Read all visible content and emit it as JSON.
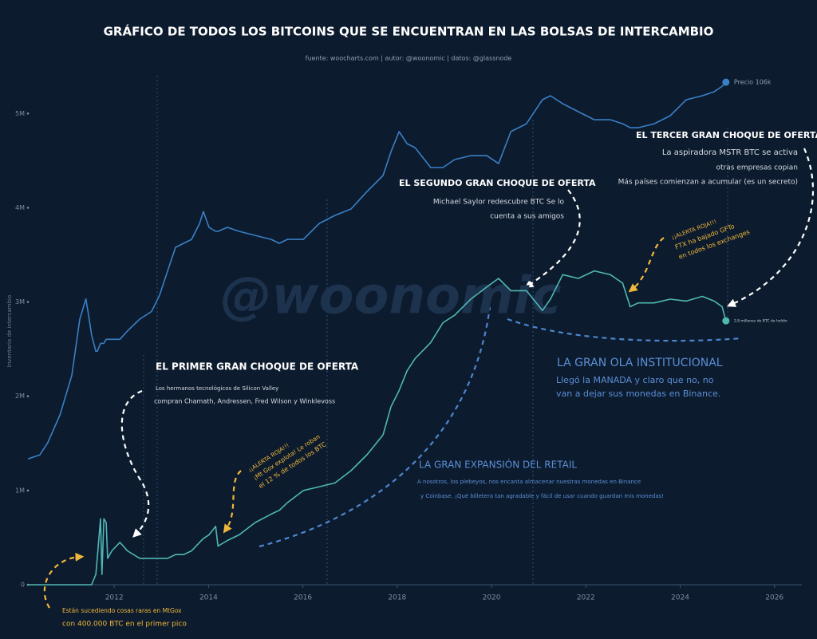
{
  "chart_data": {
    "type": "line",
    "title": "GRÁFICO DE TODOS LOS BITCOINS QUE SE ENCUENTRAN EN LAS BOLSAS DE INTERCAMBIO",
    "subtitle": "fuente: woocharts.com | autor: @woonomic | datos: @glassnode",
    "y_label": "Inventario de intercambio",
    "watermark": "@woonomic",
    "xlim": [
      2010.17,
      2026.58
    ],
    "xticks": [
      2012,
      2014,
      2016,
      2018,
      2020,
      2022,
      2024,
      2026
    ],
    "ylim": [
      0,
      5400000
    ],
    "yticks": [
      0,
      {
        "value": 1000000,
        "label": "1M"
      },
      {
        "value": 2000000,
        "label": "2M"
      },
      {
        "value": 3000000,
        "label": "3M"
      },
      {
        "value": 4000000,
        "label": "4M"
      },
      {
        "value": 5000000,
        "label": "5M"
      }
    ],
    "y2lim": [
      0.00058,
      135000
    ],
    "y2scale": "log",
    "x": [
      2010.17,
      2010.42,
      2010.59,
      2010.85,
      2011.1,
      2011.27,
      2011.4,
      2011.47,
      2011.52,
      2011.61,
      2011.64,
      2011.71,
      2011.74,
      2011.78,
      2011.83,
      2011.86,
      2011.95,
      2012.12,
      2012.28,
      2012.54,
      2012.79,
      2012.96,
      2013.13,
      2013.3,
      2013.47,
      2013.64,
      2013.81,
      2013.89,
      2014.01,
      2014.15,
      2014.2,
      2014.4,
      2014.65,
      2014.99,
      2015.33,
      2015.5,
      2015.67,
      2016.01,
      2016.35,
      2016.68,
      2017.02,
      2017.36,
      2017.7,
      2017.87,
      2018.04,
      2018.21,
      2018.38,
      2018.71,
      2018.97,
      2019.22,
      2019.56,
      2019.9,
      2020.15,
      2020.41,
      2020.74,
      2021.08,
      2021.25,
      2021.51,
      2021.84,
      2022.18,
      2022.52,
      2022.78,
      2022.94,
      2023.11,
      2023.45,
      2023.79,
      2024.13,
      2024.47,
      2024.72,
      2024.89,
      2024.97
    ],
    "series": [
      {
        "color": "#4fb8b3",
        "end_label": "2,8 millones de BTC de holdin",
        "values": [
          0,
          0,
          0,
          0,
          0,
          0,
          0,
          0,
          0,
          110000,
          280000,
          700000,
          110000,
          700000,
          660000,
          280000,
          360000,
          450000,
          360000,
          280000,
          280000,
          280000,
          280000,
          320000,
          320000,
          360000,
          450000,
          490000,
          530000,
          620000,
          410000,
          470000,
          530000,
          660000,
          750000,
          790000,
          870000,
          1000000,
          1040000,
          1080000,
          1210000,
          1380000,
          1590000,
          1890000,
          2060000,
          2270000,
          2400000,
          2570000,
          2780000,
          2860000,
          3030000,
          3160000,
          3250000,
          3120000,
          3120000,
          2910000,
          3030000,
          3290000,
          3250000,
          3330000,
          3290000,
          3200000,
          2950000,
          2990000,
          2990000,
          3030000,
          3010000,
          3060000,
          3010000,
          2950000,
          2800000
        ]
      },
      {
        "color": "#3a80c6",
        "axis": "y2",
        "end_label": "Precio 106k",
        "values": [
          0.068,
          0.079,
          0.125,
          0.36,
          1.6,
          13.5,
          29,
          13.5,
          7.4,
          4.0,
          4.0,
          5.4,
          5.4,
          5.4,
          6.3,
          6.3,
          6.3,
          6.3,
          8.6,
          13.5,
          18,
          33,
          83,
          204,
          238,
          276,
          506,
          794,
          435,
          374,
          374,
          435,
          374,
          321,
          276,
          238,
          276,
          276,
          506,
          684,
          871,
          1690,
          3100,
          7650,
          16300,
          10350,
          8900,
          4190,
          4190,
          5660,
          6580,
          6580,
          4860,
          16300,
          22000,
          54500,
          63400,
          46900,
          34700,
          25600,
          25600,
          22000,
          18900,
          18900,
          22000,
          29800,
          54500,
          63400,
          73800,
          91000,
          106000
        ]
      }
    ],
    "annotations": [
      "EL PRIMER GRAN CHOQUE DE OFERTA",
      "Los hermanos tecnológicos de Silicon Valley",
      "compran Chamath, Andressen, Fred Wilson y Winklevoss",
      "EL SEGUNDO GRAN CHOQUE DE OFERTA",
      "Michael Saylor redescubre BTC Se lo",
      "cuenta a sus amigos",
      "EL TERCER GRAN CHOQUE DE OFERTA",
      "La aspiradora MSTR BTC se activa",
      "otras empresas copian",
      "Más países comienzan a acumular (es un secreto)",
      "LA GRAN OLA INSTITUCIONAL",
      "Llegó la MANADA y claro que no, no",
      "van a dejar sus monedas en Binance.",
      "LA GRAN EXPANSIÓN DEL RETAIL",
      "A nosotros, los plebeyos, nos encanta almacenar nuestras monedas en Binance",
      "y Coinbase. ¡Qué billetera tan agradable y fácil de usar cuando guardan mis monedas!",
      "Están sucediendo cosas raras en MtGox",
      "con 400.000 BTC en el primer pico",
      "¡¡ALERTA ROJA!!!",
      "¡Mt Gox explota! Le roban",
      "el 12 % de todos los BTC",
      "¡¡ALERTA ROJA!!!",
      "FTX ha bajado GFTo",
      "en todos los exchanges"
    ]
  }
}
